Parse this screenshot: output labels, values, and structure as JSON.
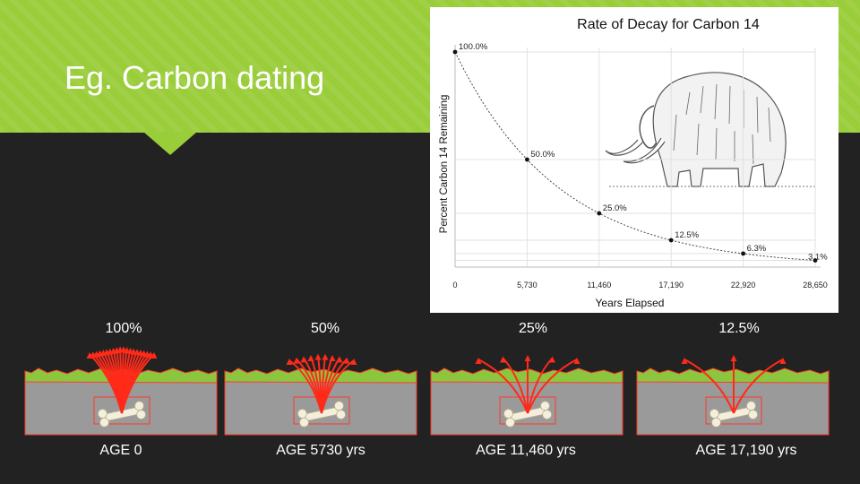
{
  "slide": {
    "title": "Eg. Carbon dating"
  },
  "chart_data": {
    "type": "line",
    "title": "Rate of Decay for Carbon 14",
    "xlabel": "Years Elapsed",
    "ylabel": "Percent Carbon 14 Remaining",
    "x": [
      0,
      5730,
      11460,
      17190,
      22920,
      28650
    ],
    "x_tick_labels": [
      "0",
      "5,730",
      "11,460",
      "17,190",
      "22,920",
      "28,650"
    ],
    "values": [
      100.0,
      50.0,
      25.0,
      12.5,
      6.3,
      3.1
    ],
    "point_labels": [
      "100.0%",
      "50.0%",
      "25.0%",
      "12.5%",
      "6.3%",
      "3.1%"
    ],
    "xlim": [
      0,
      28650
    ],
    "ylim": [
      0,
      100
    ],
    "grid": true
  },
  "panels": [
    {
      "percent": "100%",
      "age": "AGE 0",
      "rays": 20
    },
    {
      "percent": "50%",
      "age": "AGE 5730 yrs",
      "rays": 10
    },
    {
      "percent": "25%",
      "age": "AGE 11,460 yrs",
      "rays": 5
    },
    {
      "percent": "12.5%",
      "age": "AGE 17,190 yrs",
      "rays": 3
    }
  ],
  "colors": {
    "banner": "#9acd3a",
    "background": "#222222",
    "ray": "#ff2a1a",
    "soil": "#9a9a9a",
    "grass": "#8cc63f"
  }
}
